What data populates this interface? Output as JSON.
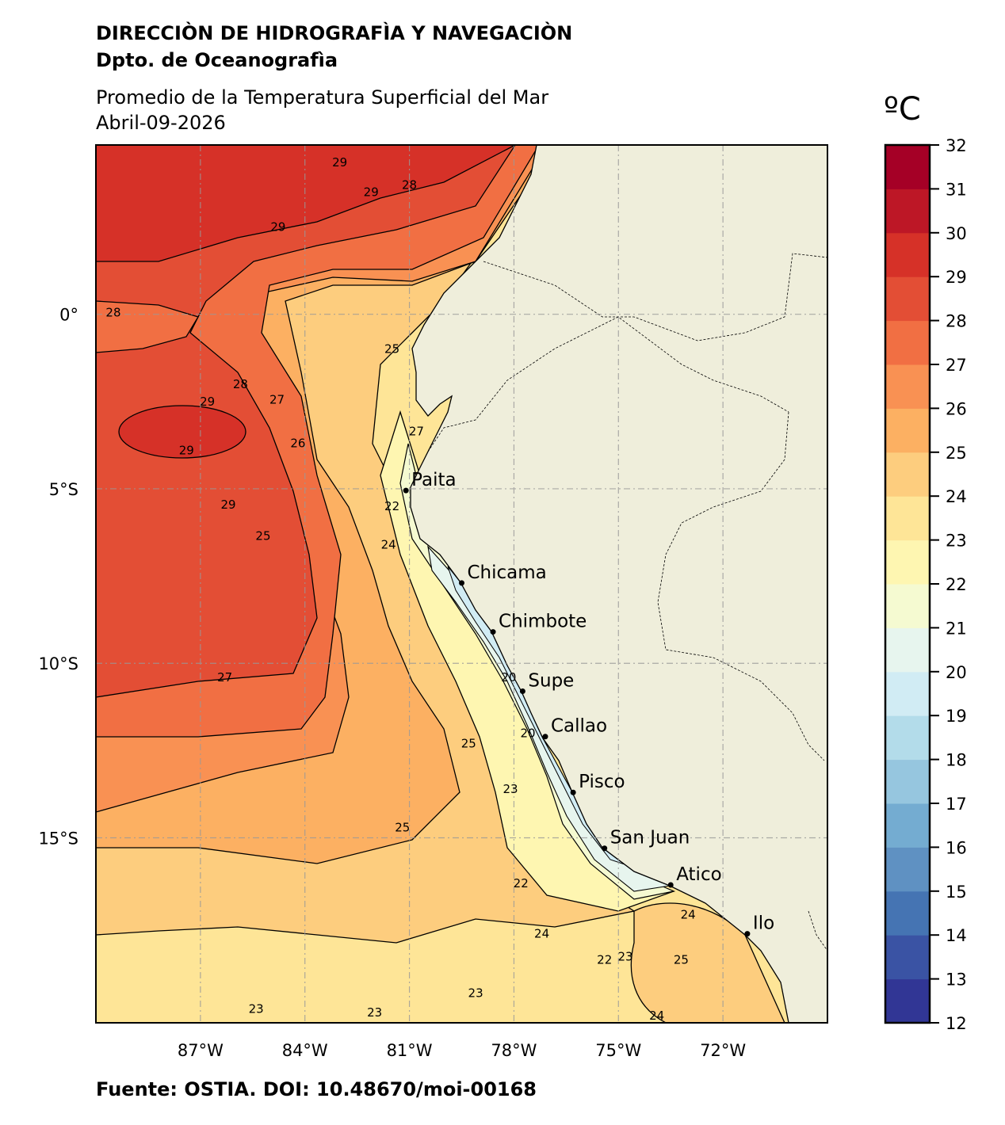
{
  "header": {
    "institution": "DIRECCIÒN DE HIDROGRAFÌA Y NAVEGACIÒN",
    "department": "Dpto. de Oceanografìa",
    "title": "Promedio de la Temperatura Superficial del Mar",
    "date": "Abril-09-2026"
  },
  "footer": {
    "source": "Fuente: OSTIA. DOI: 10.48670/moi-00168"
  },
  "chart_data": {
    "type": "heatmap",
    "subtype": "filled-contour map",
    "extent": {
      "lon": [
        -90,
        -69
      ],
      "lat": [
        -20.3,
        4.85
      ]
    },
    "grid": true,
    "x_ticks": [
      "87°W",
      "84°W",
      "81°W",
      "78°W",
      "75°W",
      "72°W"
    ],
    "x_tick_values": [
      -87,
      -84,
      -81,
      -78,
      -75,
      -72
    ],
    "y_ticks": [
      "0°",
      "5°S",
      "10°S",
      "15°S"
    ],
    "y_tick_values": [
      0,
      -5,
      -10,
      -15
    ],
    "colorbar": {
      "label": "ºC",
      "min": 12,
      "max": 32,
      "step": 1,
      "ticks": [
        "12",
        "13",
        "14",
        "15",
        "16",
        "17",
        "18",
        "19",
        "20",
        "21",
        "22",
        "23",
        "24",
        "25",
        "26",
        "27",
        "28",
        "29",
        "30",
        "31",
        "32"
      ],
      "colors": [
        "#313695",
        "#3a53a4",
        "#4574b3",
        "#5f91c2",
        "#74acd1",
        "#96c6df",
        "#b3dcea",
        "#d1ecf4",
        "#e7f5ee",
        "#f5fad1",
        "#fef6b1",
        "#fee597",
        "#fdcd7e",
        "#fcb062",
        "#f99153",
        "#f16f43",
        "#e34e35",
        "#d63128",
        "#bd1726",
        "#a50026"
      ]
    },
    "land_color": "#efeedb",
    "ports": [
      {
        "name": "Paita",
        "lon": -81.1,
        "lat": -5.05
      },
      {
        "name": "Chicama",
        "lon": -79.5,
        "lat": -7.7
      },
      {
        "name": "Chimbote",
        "lon": -78.6,
        "lat": -9.1
      },
      {
        "name": "Supe",
        "lon": -77.75,
        "lat": -10.8
      },
      {
        "name": "Callao",
        "lon": -77.1,
        "lat": -12.1
      },
      {
        "name": "Pisco",
        "lon": -76.3,
        "lat": -13.7
      },
      {
        "name": "San Juan",
        "lon": -75.4,
        "lat": -15.3
      },
      {
        "name": "Atico",
        "lon": -73.5,
        "lat": -16.35
      },
      {
        "name": "Ilo",
        "lon": -71.3,
        "lat": -17.75
      }
    ],
    "contour_labels": [
      {
        "text": "29",
        "lon": -84.77,
        "lat": 2.5
      },
      {
        "text": "29",
        "lon": -83.0,
        "lat": 4.35
      },
      {
        "text": "29",
        "lon": -82.1,
        "lat": 3.5
      },
      {
        "text": "28",
        "lon": -81.0,
        "lat": 3.7
      },
      {
        "text": "28",
        "lon": -89.5,
        "lat": 0.05
      },
      {
        "text": "28",
        "lon": -85.85,
        "lat": -2.0
      },
      {
        "text": "27",
        "lon": -84.8,
        "lat": -2.45
      },
      {
        "text": "29",
        "lon": -86.8,
        "lat": -2.5
      },
      {
        "text": "29",
        "lon": -87.4,
        "lat": -3.9
      },
      {
        "text": "26",
        "lon": -84.2,
        "lat": -3.7
      },
      {
        "text": "25",
        "lon": -81.5,
        "lat": -1.0
      },
      {
        "text": "27",
        "lon": -80.8,
        "lat": -3.35
      },
      {
        "text": "29",
        "lon": -86.2,
        "lat": -5.45
      },
      {
        "text": "25",
        "lon": -85.2,
        "lat": -6.35
      },
      {
        "text": "22",
        "lon": -81.5,
        "lat": -5.5
      },
      {
        "text": "24",
        "lon": -81.6,
        "lat": -6.6
      },
      {
        "text": "27",
        "lon": -86.3,
        "lat": -10.4
      },
      {
        "text": "20",
        "lon": -78.15,
        "lat": -10.4
      },
      {
        "text": "20",
        "lon": -77.6,
        "lat": -12.0
      },
      {
        "text": "25",
        "lon": -79.3,
        "lat": -12.3
      },
      {
        "text": "23",
        "lon": -78.1,
        "lat": -13.6
      },
      {
        "text": "25",
        "lon": -81.2,
        "lat": -14.7
      },
      {
        "text": "22",
        "lon": -77.8,
        "lat": -16.3
      },
      {
        "text": "24",
        "lon": -77.2,
        "lat": -17.75
      },
      {
        "text": "23",
        "lon": -74.8,
        "lat": -18.4
      },
      {
        "text": "22",
        "lon": -75.4,
        "lat": -18.5
      },
      {
        "text": "25",
        "lon": -73.2,
        "lat": -18.5
      },
      {
        "text": "24",
        "lon": -73.0,
        "lat": -17.2
      },
      {
        "text": "23",
        "lon": -79.1,
        "lat": -19.45
      },
      {
        "text": "23",
        "lon": -82.0,
        "lat": -20.0
      },
      {
        "text": "23",
        "lon": -85.4,
        "lat": -19.9
      },
      {
        "text": "24",
        "lon": -73.9,
        "lat": -20.1
      }
    ]
  }
}
